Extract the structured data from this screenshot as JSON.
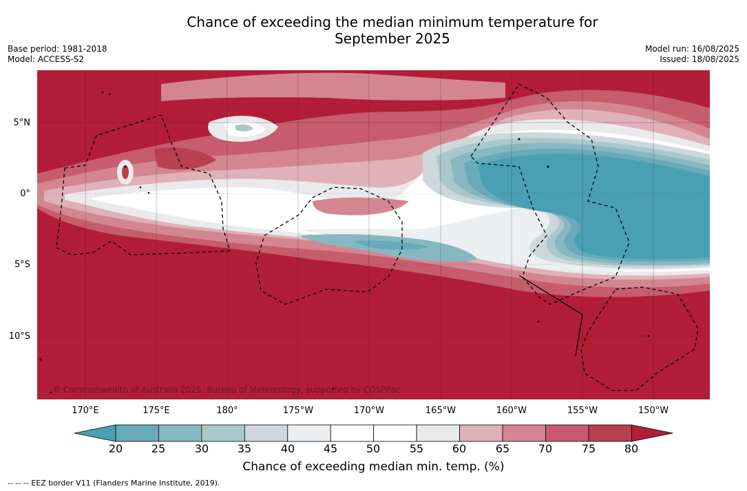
{
  "header": {
    "title_line1": "Chance of exceeding the median minimum temperature for",
    "title_line2": "September 2025",
    "base_period": "Base period: 1981-2018",
    "model": "Model: ACCESS-S2",
    "model_run": "Model run: 16/08/2025",
    "issued": "Issued: 18/08/2025"
  },
  "map": {
    "copyright": "© Commonwealth of Australia 2025, Bureau of Meteorology, supported by COSPPac",
    "lat_labels": [
      "5°N",
      "0°",
      "5°S",
      "10°S"
    ],
    "lon_labels": [
      "170°E",
      "175°E",
      "180°",
      "175°W",
      "170°W",
      "165°W",
      "160°W",
      "155°W",
      "150°W"
    ],
    "gridlines": true,
    "background_color": "#b21d38"
  },
  "colorbar": {
    "ticks": [
      "20",
      "25",
      "30",
      "35",
      "40",
      "45",
      "50",
      "55",
      "60",
      "65",
      "70",
      "75",
      "80"
    ],
    "colors": [
      "#4aa0b3",
      "#68aab9",
      "#87b8c2",
      "#a9c8cc",
      "#ccd8dc",
      "#ebeff1",
      "#ffffff",
      "#ffffff",
      "#eaeaec",
      "#dfb1b8",
      "#d48690",
      "#c65c6c",
      "#b9404f",
      "#b21d38"
    ],
    "label": "Chance of exceeding median min. temp. (%)"
  },
  "footnote": "--  --  -- EEZ border V11 (Flanders Marine Institute, 2019)."
}
